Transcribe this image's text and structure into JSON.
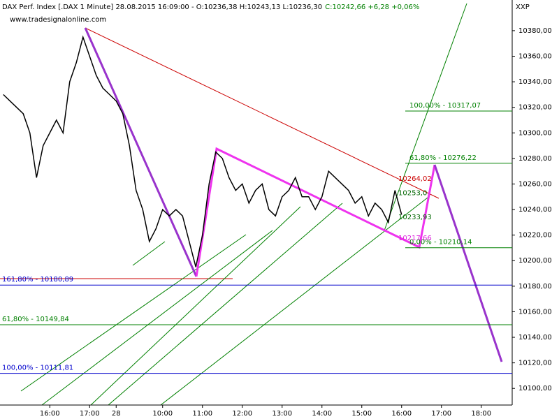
{
  "chart_data": {
    "type": "line",
    "title": "DAX Perf. Index [.DAX  1 Minute] 28.08.2015 16:09:00 - O:10236,38 H:10243,13 L:10236,30",
    "subtitle": "C:10242,66 +6,28 +0,06%",
    "source": "www.tradesignalonline.com",
    "axis_name": "XXP",
    "categories": [
      null,
      null,
      null,
      null,
      null,
      null,
      null,
      "16:00",
      null,
      null,
      null,
      null,
      null,
      "17:00",
      null,
      null,
      null,
      "28",
      null,
      null,
      null,
      null,
      null,
      null,
      "10:00",
      null,
      null,
      null,
      null,
      null,
      "11:00",
      null,
      null,
      null,
      null,
      null,
      "12:00",
      null,
      null,
      null,
      null,
      null,
      "13:00",
      null,
      null,
      null,
      null,
      null,
      "14:00",
      null,
      null,
      null,
      null,
      null,
      "15:00",
      null,
      null,
      null,
      null,
      null,
      "16:00",
      null,
      null,
      null,
      null,
      null,
      "17:00",
      null,
      null,
      null,
      null,
      null,
      "18:00",
      null,
      null,
      null,
      null
    ],
    "series": [
      {
        "color": "#000000",
        "values": [
          10330,
          10325,
          10320,
          10315,
          10300,
          10265,
          10290,
          10300,
          10310,
          10300,
          10340,
          10355,
          10375,
          10360,
          10345,
          10335,
          10330,
          10325,
          10315,
          10290,
          10255,
          10240,
          10215,
          10225,
          10240,
          10235,
          10240,
          10235,
          10215,
          10195,
          10220,
          10260,
          10285,
          10280,
          10265,
          10255,
          10260,
          10245,
          10255,
          10260,
          10240,
          10235,
          10250,
          10255,
          10265,
          10250,
          10250,
          10240,
          10250,
          10270,
          10265,
          10260,
          10255,
          10245,
          10250,
          10235,
          10245,
          10240,
          10230,
          10255,
          10236,
          null,
          null,
          null,
          null,
          null,
          null,
          null,
          null,
          null,
          null,
          null,
          null,
          null,
          null,
          null,
          null
        ]
      }
    ],
    "ylim": [
      10087,
      10404
    ],
    "yticks": [
      {
        "value": 10100,
        "label": "10100,00"
      },
      {
        "value": 10120,
        "label": "10120,00"
      },
      {
        "value": 10140,
        "label": "10140,00"
      },
      {
        "value": 10160,
        "label": "10160,00"
      },
      {
        "value": 10180,
        "label": "10180,00"
      },
      {
        "value": 10200,
        "label": "10200,00"
      },
      {
        "value": 10220,
        "label": "10220,00"
      },
      {
        "value": 10240,
        "label": "10240,00"
      },
      {
        "value": 10260,
        "label": "10260,00"
      },
      {
        "value": 10280,
        "label": "10280,00"
      },
      {
        "value": 10300,
        "label": "10300,00"
      },
      {
        "value": 10320,
        "label": "10320,00"
      },
      {
        "value": 10340,
        "label": "10340,00"
      },
      {
        "value": 10360,
        "label": "10360,00"
      },
      {
        "value": 10380,
        "label": "10380,00"
      }
    ],
    "levels": [
      {
        "value": 10180.89,
        "label": "161,80% - 10180,89",
        "color": "#0000cc"
      },
      {
        "value": 10149.84,
        "label": "61,80% - 10149,84",
        "color": "#008000"
      },
      {
        "value": 10111.81,
        "label": "100,00% - 10111,81",
        "color": "#0000cc"
      },
      {
        "value": 10317.07,
        "label": "100,00% - 10317,07",
        "color": "#008000"
      },
      {
        "value": 10276.22,
        "label": "61,80% - 10276,22",
        "color": "#008000"
      },
      {
        "value": 10210.14,
        "label": "0,00% - 10210,14",
        "color": "#008000"
      }
    ],
    "annotations": [
      {
        "value": 10264.02,
        "label": "10264,02",
        "color": "#cc0000"
      },
      {
        "value": 10253.0,
        "label": "10253,0",
        "color": "#006600"
      },
      {
        "value": 10233.93,
        "label": "10233,93",
        "color": "#006600"
      },
      {
        "value": 10217.66,
        "label": "10217,66",
        "color": "#dd22dd"
      }
    ]
  }
}
